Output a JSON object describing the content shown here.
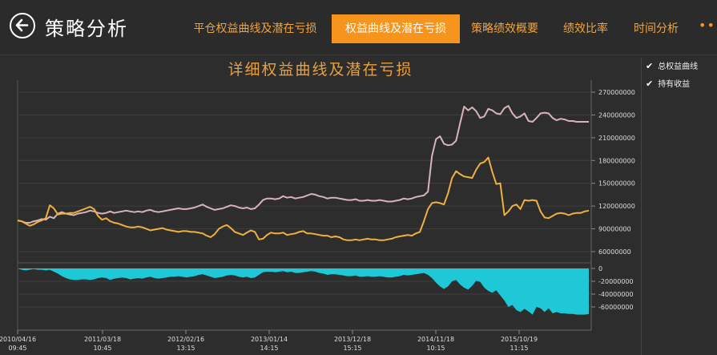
{
  "header": {
    "title": "策略分析",
    "tabs": [
      {
        "label": "平仓权益曲线及潜在亏损",
        "active": false
      },
      {
        "label": "权益曲线及潜在亏损",
        "active": true
      },
      {
        "label": "策略绩效概要",
        "active": false
      },
      {
        "label": "绩效比率",
        "active": false
      },
      {
        "label": "时间分析",
        "active": false
      }
    ],
    "more": "•••"
  },
  "legend": [
    {
      "label": "总权益曲线",
      "checked": true
    },
    {
      "label": "持有收益",
      "checked": true
    }
  ],
  "colors": {
    "equity": "#d8b4b8",
    "holding": "#f0b040",
    "drawdown": "#1fc8d6",
    "accent": "#f7941d"
  },
  "chart_data": {
    "type": "line",
    "title": "详细权益曲线及潜在亏损",
    "x_labels": [
      [
        "2010/04/16",
        "09:45"
      ],
      [
        "2011/03/18",
        "10:45"
      ],
      [
        "2012/02/16",
        "13:15"
      ],
      [
        "2013/01/14",
        "14:15"
      ],
      [
        "2013/12/18",
        "15:15"
      ],
      [
        "2014/11/18",
        "10:15"
      ],
      [
        "2015/10/19",
        "11:15"
      ]
    ],
    "upper_yticks": [
      "270000000",
      "240000000",
      "210000000",
      "180000000",
      "150000000",
      "120000000",
      "90000000",
      "60000000"
    ],
    "upper_ylim": [
      60000000,
      270000000
    ],
    "lower_yticks": [
      "0",
      "-20000000",
      "-40000000",
      "-60000000"
    ],
    "lower_ylim": [
      -75000000,
      0
    ],
    "series": [
      {
        "name": "总权益曲线",
        "values": [
          101,
          100,
          98,
          98,
          100,
          101,
          103,
          102,
          106,
          104,
          110,
          112,
          110,
          109,
          108,
          110,
          111,
          112,
          114,
          113,
          111,
          110,
          111,
          113,
          111,
          112,
          113,
          114,
          113,
          112,
          113,
          112,
          114,
          115,
          113,
          112,
          113,
          114,
          115,
          116,
          117,
          116,
          116,
          117,
          118,
          120,
          122,
          119,
          117,
          115,
          116,
          117,
          119,
          121,
          120,
          118,
          117,
          118,
          116,
          117,
          122,
          128,
          130,
          130,
          129,
          130,
          133,
          131,
          132,
          130,
          131,
          132,
          134,
          136,
          135,
          133,
          132,
          130,
          131,
          131,
          130,
          129,
          128,
          128,
          129,
          127,
          127,
          128,
          127,
          127,
          128,
          127,
          126,
          126,
          127,
          128,
          130,
          129,
          130,
          132,
          133,
          134,
          139,
          186,
          208,
          212,
          202,
          200,
          201,
          206,
          229,
          251,
          246,
          250,
          245,
          236,
          238,
          248,
          246,
          242,
          241,
          249,
          252,
          242,
          236,
          238,
          242,
          232,
          231,
          236,
          242,
          243,
          242,
          236,
          233,
          235,
          234,
          232,
          232,
          231,
          231,
          231,
          231
        ]
      },
      {
        "name": "持有收益",
        "values": [
          101,
          100,
          97,
          94,
          96,
          99,
          101,
          104,
          121,
          117,
          109,
          110,
          110,
          111,
          111,
          113,
          115,
          117,
          119,
          116,
          107,
          102,
          104,
          100,
          98,
          97,
          95,
          93,
          92,
          92,
          93,
          92,
          90,
          88,
          89,
          90,
          91,
          89,
          88,
          87,
          86,
          87,
          87,
          86,
          86,
          85,
          84,
          81,
          79,
          83,
          90,
          93,
          95,
          91,
          86,
          84,
          82,
          85,
          88,
          86,
          76,
          77,
          82,
          85,
          84,
          84,
          85,
          82,
          83,
          84,
          86,
          87,
          84,
          84,
          83,
          82,
          81,
          81,
          79,
          80,
          79,
          76,
          75,
          75,
          76,
          75,
          76,
          77,
          76,
          76,
          75,
          75,
          76,
          77,
          79,
          80,
          81,
          82,
          81,
          84,
          86,
          100,
          116,
          124,
          125,
          124,
          122,
          137,
          157,
          166,
          162,
          159,
          158,
          157,
          168,
          176,
          178,
          184,
          165,
          149,
          150,
          108,
          113,
          120,
          122,
          116,
          128,
          127,
          128,
          127,
          113,
          105,
          104,
          107,
          110,
          111,
          110,
          108,
          110,
          111,
          111,
          113,
          114
        ]
      },
      {
        "name": "drawdown",
        "values": [
          0,
          -2,
          -3,
          -2,
          -1,
          -2,
          -2,
          -3,
          -2,
          -5,
          -8,
          -12,
          -15,
          -17,
          -18,
          -18,
          -17,
          -17,
          -18,
          -17,
          -15,
          -14,
          -15,
          -18,
          -16,
          -15,
          -14,
          -15,
          -17,
          -16,
          -15,
          -16,
          -14,
          -13,
          -15,
          -16,
          -15,
          -14,
          -13,
          -13,
          -12,
          -13,
          -14,
          -13,
          -12,
          -10,
          -9,
          -11,
          -13,
          -15,
          -14,
          -13,
          -11,
          -10,
          -11,
          -13,
          -14,
          -13,
          -15,
          -14,
          -10,
          -6,
          -5,
          -5,
          -6,
          -5,
          -4,
          -6,
          -5,
          -7,
          -7,
          -6,
          -5,
          -4,
          -5,
          -7,
          -8,
          -10,
          -9,
          -9,
          -10,
          -11,
          -12,
          -12,
          -11,
          -13,
          -13,
          -12,
          -13,
          -13,
          -12,
          -13,
          -14,
          -14,
          -13,
          -12,
          -10,
          -11,
          -10,
          -9,
          -8,
          -7,
          -10,
          -15,
          -22,
          -28,
          -32,
          -28,
          -20,
          -18,
          -25,
          -30,
          -33,
          -27,
          -19,
          -21,
          -30,
          -35,
          -38,
          -34,
          -42,
          -50,
          -60,
          -57,
          -65,
          -68,
          -63,
          -67,
          -72,
          -60,
          -62,
          -68,
          -62,
          -70,
          -68,
          -70,
          -70,
          -71,
          -71,
          -72,
          -72,
          -72,
          -71
        ]
      }
    ]
  }
}
